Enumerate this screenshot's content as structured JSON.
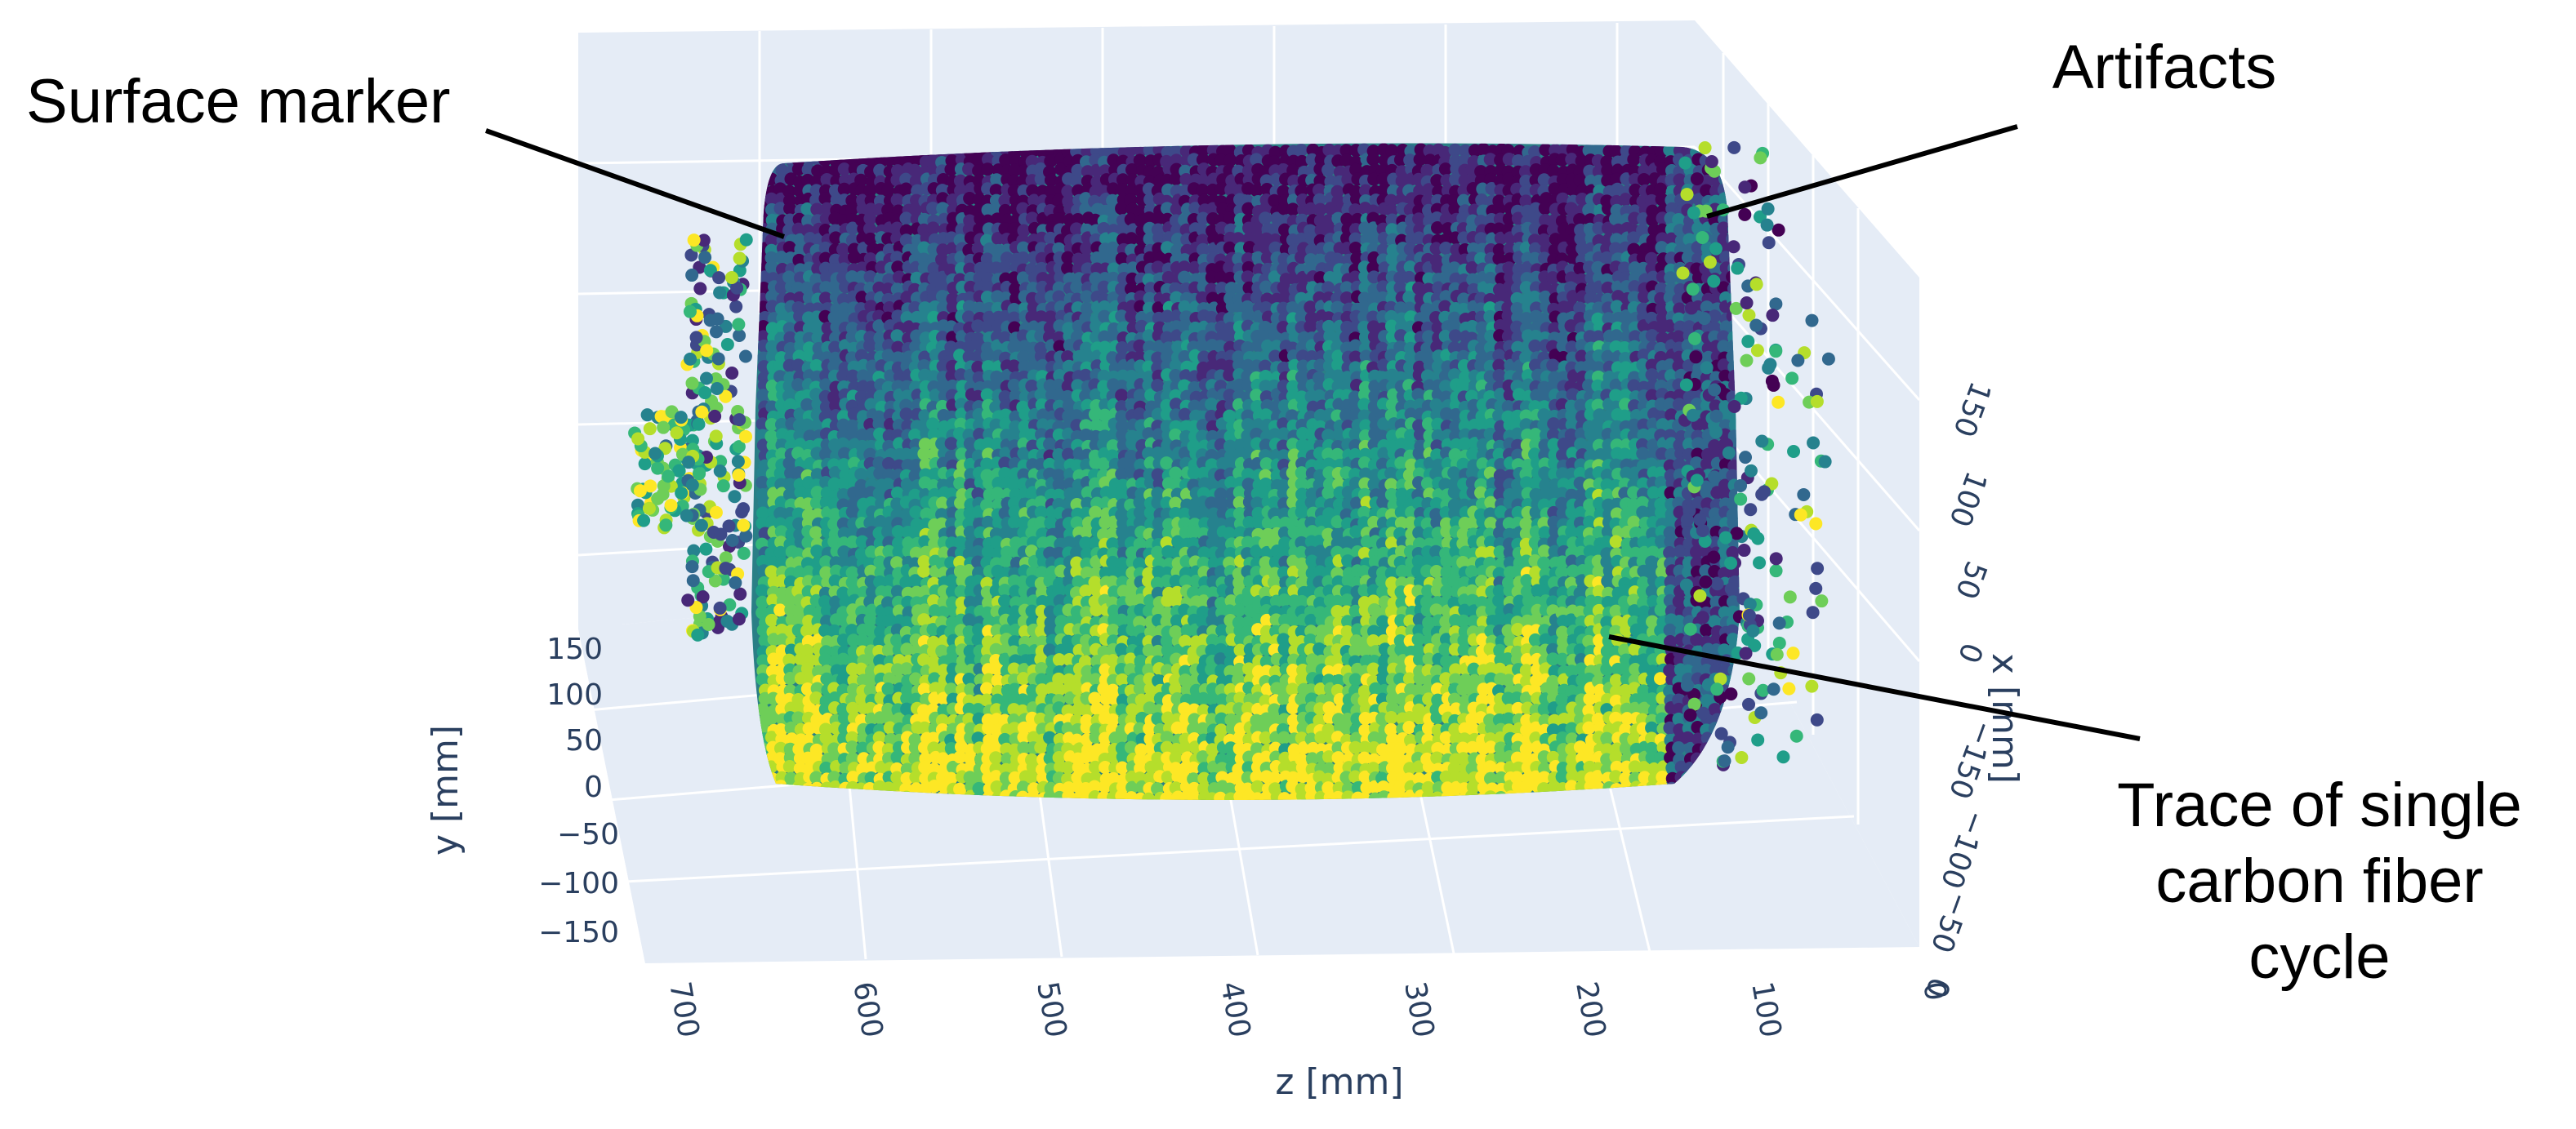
{
  "chart_data": {
    "type": "scatter",
    "dimensions": "3d",
    "colorscale": "viridis",
    "scene_background": "#e5ecf6",
    "grid": true,
    "x_axis": {
      "label": "x [mm]",
      "ticks": [
        "0",
        "−50",
        "−100",
        "−150",
        "0",
        "50",
        "100",
        "150"
      ],
      "range": [
        -150,
        150
      ]
    },
    "y_axis": {
      "label": "y [mm]",
      "ticks": [
        "150",
        "100",
        "50",
        "0",
        "−50",
        "−100",
        "−150"
      ],
      "range": [
        -150,
        150
      ]
    },
    "z_axis": {
      "label": "z [mm]",
      "ticks": [
        "700",
        "600",
        "500",
        "400",
        "300",
        "200",
        "100",
        "0"
      ],
      "range": [
        0,
        720
      ]
    },
    "annotations": [
      {
        "text": "Surface marker"
      },
      {
        "text": "Artifacts"
      },
      {
        "text": "Trace of single carbon fiber cycle",
        "lines": [
          "Trace of single",
          "carbon fiber",
          "cycle"
        ]
      }
    ]
  },
  "colors": {
    "viridis": [
      "#440154",
      "#482878",
      "#3e4989",
      "#31688e",
      "#26828e",
      "#1f9e89",
      "#35b779",
      "#6ece58",
      "#b5de2b",
      "#fde725"
    ],
    "tick_text": "#2a3f5f",
    "annotation_text": "#000000"
  }
}
